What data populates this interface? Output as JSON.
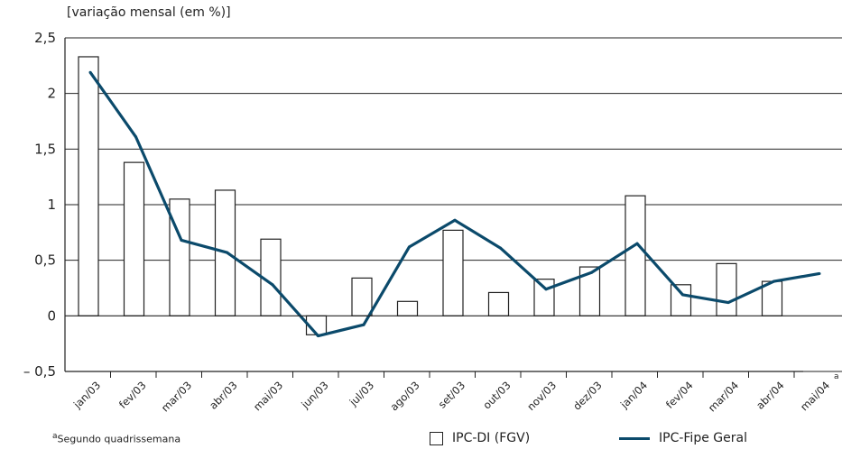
{
  "chart_data": {
    "type": "bar",
    "ylabel": "[variação mensal (em %)]",
    "categories": [
      "jan/03",
      "fev/03",
      "mar/03",
      "abr/03",
      "mai/03",
      "jun/03",
      "jul/03",
      "ago/03",
      "set/03",
      "out/03",
      "nov/03",
      "dez/03",
      "jan/04",
      "fev/04",
      "mar/04",
      "abr/04",
      "mai/04"
    ],
    "category_footnote_marker": {
      "category": "mai/04",
      "marker": "a"
    },
    "ylim": [
      -0.5,
      2.5
    ],
    "yticks": [
      "2,5",
      "2",
      "1,5",
      "1",
      "0,5",
      "0",
      "– 0,5"
    ],
    "ytick_values": [
      2.5,
      2,
      1.5,
      1,
      0.5,
      0,
      -0.5
    ],
    "grid": true,
    "legend_position": "bottom",
    "series": [
      {
        "name": "IPC-DI (FGV)",
        "type": "bar",
        "color": "#ffffff",
        "values": [
          2.33,
          1.38,
          1.05,
          1.13,
          0.69,
          -0.17,
          0.34,
          0.13,
          0.77,
          0.21,
          0.33,
          0.44,
          1.08,
          0.28,
          0.47,
          0.31,
          null
        ]
      },
      {
        "name": "IPC-Fipe Geral",
        "type": "line",
        "color": "#0b4a6b",
        "values": [
          2.19,
          1.61,
          0.68,
          0.57,
          0.28,
          -0.18,
          -0.08,
          0.62,
          0.86,
          0.61,
          0.24,
          0.39,
          0.65,
          0.19,
          0.12,
          0.31,
          0.38
        ]
      }
    ]
  },
  "footnote": {
    "marker": "a",
    "text": "Segundo quadrissemana"
  }
}
